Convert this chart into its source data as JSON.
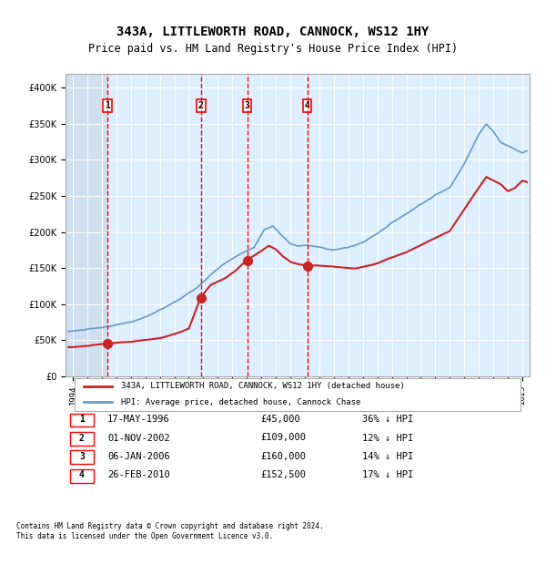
{
  "title": "343A, LITTLEWORTH ROAD, CANNOCK, WS12 1HY",
  "subtitle": "Price paid vs. HM Land Registry's House Price Index (HPI)",
  "footer1": "Contains HM Land Registry data © Crown copyright and database right 2024.",
  "footer2": "This data is licensed under the Open Government Licence v3.0.",
  "legend_line1": "343A, LITTLEWORTH ROAD, CANNOCK, WS12 1HY (detached house)",
  "legend_line2": "HPI: Average price, detached house, Cannock Chase",
  "transactions": [
    {
      "num": 1,
      "date": "17-MAY-1996",
      "price": 45000,
      "pct": "36%",
      "dir": "↓",
      "year": 1996.38
    },
    {
      "num": 2,
      "date": "01-NOV-2002",
      "price": 109000,
      "pct": "12%",
      "dir": "↓",
      "year": 2002.83
    },
    {
      "num": 3,
      "date": "06-JAN-2006",
      "price": 160000,
      "pct": "14%",
      "dir": "↓",
      "year": 2006.02
    },
    {
      "num": 4,
      "date": "26-FEB-2010",
      "price": 152500,
      "pct": "17%",
      "dir": "↓",
      "year": 2010.16
    }
  ],
  "hpi_color": "#6699cc",
  "price_color": "#cc2222",
  "bg_chart": "#ddeeff",
  "bg_hatch": "#ccddee",
  "ylim": [
    0,
    420000
  ],
  "xlim_start": 1993.5,
  "xlim_end": 2025.5
}
